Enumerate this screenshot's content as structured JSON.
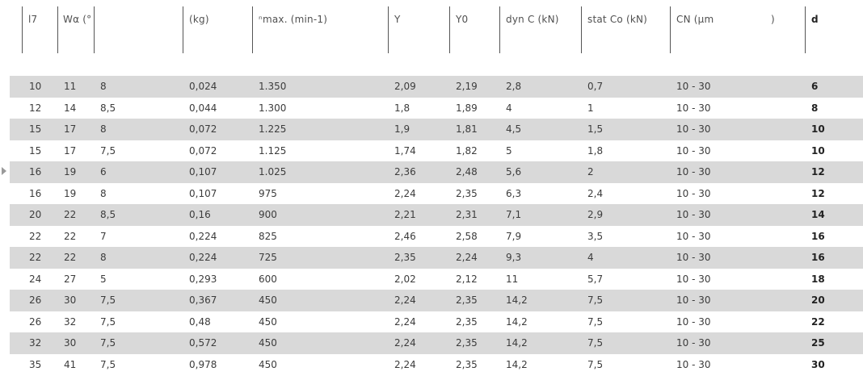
{
  "headers": [
    "l7",
    "Wα (°",
    "",
    "(kg)",
    "ⁿmax. (min-1)",
    "Y",
    "Y0",
    "dyn C (kN)",
    "stat Co (kN)",
    "CN (µm",
    ")",
    "d"
  ],
  "rows": [
    [
      "10",
      "11",
      "8",
      "0,024",
      "1.350",
      "2,09",
      "2,19",
      "2,8",
      "0,7",
      "10 - 30",
      "6"
    ],
    [
      "12",
      "14",
      "8,5",
      "0,044",
      "1.300",
      "1,8",
      "1,89",
      "4",
      "1",
      "10 - 30",
      "8"
    ],
    [
      "15",
      "17",
      "8",
      "0,072",
      "1.225",
      "1,9",
      "1,81",
      "4,5",
      "1,5",
      "10 - 30",
      "10"
    ],
    [
      "15",
      "17",
      "7,5",
      "0,072",
      "1.125",
      "1,74",
      "1,82",
      "5",
      "1,8",
      "10 - 30",
      "10"
    ],
    [
      "16",
      "19",
      "6",
      "0,107",
      "1.025",
      "2,36",
      "2,48",
      "5,6",
      "2",
      "10 - 30",
      "12"
    ],
    [
      "16",
      "19",
      "8",
      "0,107",
      "975",
      "2,24",
      "2,35",
      "6,3",
      "2,4",
      "10 - 30",
      "12"
    ],
    [
      "20",
      "22",
      "8,5",
      "0,16",
      "900",
      "2,21",
      "2,31",
      "7,1",
      "2,9",
      "10 - 30",
      "14"
    ],
    [
      "22",
      "22",
      "7",
      "0,224",
      "825",
      "2,46",
      "2,58",
      "7,9",
      "3,5",
      "10 - 30",
      "16"
    ],
    [
      "22",
      "22",
      "8",
      "0,224",
      "725",
      "2,35",
      "2,24",
      "9,3",
      "4",
      "10 - 30",
      "16"
    ],
    [
      "24",
      "27",
      "5",
      "0,293",
      "600",
      "2,02",
      "2,12",
      "11",
      "5,7",
      "10 - 30",
      "18"
    ],
    [
      "26",
      "30",
      "7,5",
      "0,367",
      "450",
      "2,24",
      "2,35",
      "14,2",
      "7,5",
      "10 - 30",
      "20"
    ],
    [
      "26",
      "32",
      "7,5",
      "0,48",
      "450",
      "2,24",
      "2,35",
      "14,2",
      "7,5",
      "10 - 30",
      "22"
    ],
    [
      "32",
      "30",
      "7,5",
      "0,572",
      "450",
      "2,24",
      "2,35",
      "14,2",
      "7,5",
      "10 - 30",
      "25"
    ],
    [
      "35",
      "41",
      "7,5",
      "0,978",
      "450",
      "2,24",
      "2,35",
      "14,2",
      "7,5",
      "10 - 30",
      "30"
    ]
  ],
  "colors": {
    "shaded_row": "#d9d9d9",
    "text": "#3c3c3c",
    "divider": "#555555"
  }
}
